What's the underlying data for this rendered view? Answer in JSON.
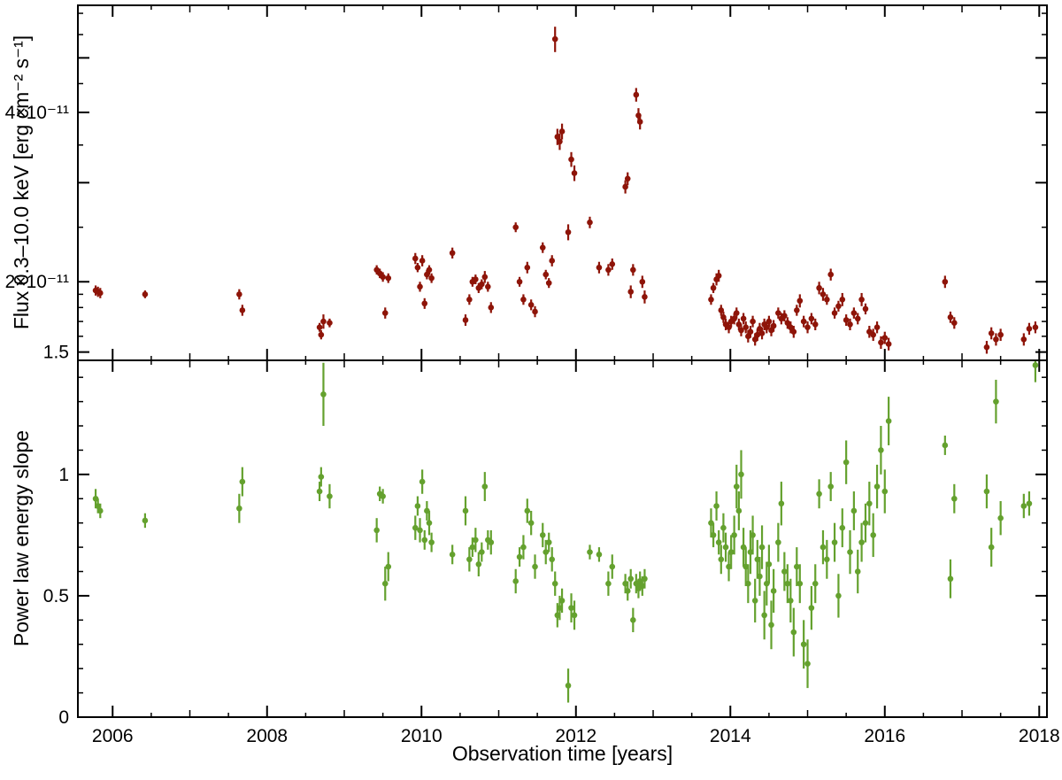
{
  "chart_data": {
    "type": "scatter",
    "description": "Two-panel X-ray monitoring light curve: 0.3-10.0 keV flux (top panel, dark red points with error bars, log scale) and power law energy slope (bottom panel, green points with error bars, linear scale) versus observation year.",
    "xlabel": "Observation time [years]",
    "xlim": [
      2005.55,
      2018.1
    ],
    "grid": false,
    "legend": null,
    "xticks": [
      {
        "v": 2006,
        "label": "2006"
      },
      {
        "v": 2008,
        "label": "2008"
      },
      {
        "v": 2010,
        "label": "2010"
      },
      {
        "v": 2012,
        "label": "2012"
      },
      {
        "v": 2014,
        "label": "2014"
      },
      {
        "v": 2016,
        "label": "2016"
      },
      {
        "v": 2018,
        "label": "2018"
      }
    ],
    "panels": [
      {
        "id": "flux",
        "ylabel": "Flux 0.3–10.0 keV [erg cm⁻² s⁻¹]",
        "yscale": "log",
        "unit": "1e-11 erg cm^-2 s^-1",
        "ylim": [
          1.45,
          6.2
        ],
        "marker_color": "#8e1408",
        "yticks": [
          {
            "v": 1.5,
            "label": "1.5",
            "major": true
          },
          {
            "v": 1.6
          },
          {
            "v": 1.7
          },
          {
            "v": 1.8
          },
          {
            "v": 1.9
          },
          {
            "v": 2,
            "label": "2×10⁻¹¹",
            "major": true
          },
          {
            "v": 2.5
          },
          {
            "v": 3,
            "major": true
          },
          {
            "v": 3.5
          },
          {
            "v": 4,
            "label": "4×10⁻¹¹",
            "major": true
          },
          {
            "v": 4.5
          },
          {
            "v": 5,
            "major": true
          },
          {
            "v": 5.5
          },
          {
            "v": 6
          }
        ]
      },
      {
        "id": "slope",
        "ylabel": "Power law energy slope",
        "yscale": "linear",
        "ylim": [
          0,
          1.47
        ],
        "marker_color": "#64a12e",
        "yticks": [
          {
            "v": 0,
            "label": "0",
            "major": true
          },
          {
            "v": 0.1
          },
          {
            "v": 0.2
          },
          {
            "v": 0.3
          },
          {
            "v": 0.4
          },
          {
            "v": 0.5,
            "label": "0.5",
            "major": true
          },
          {
            "v": 0.6
          },
          {
            "v": 0.7
          },
          {
            "v": 0.8
          },
          {
            "v": 0.9
          },
          {
            "v": 1,
            "label": "1",
            "major": true
          },
          {
            "v": 1.1
          },
          {
            "v": 1.2
          },
          {
            "v": 1.3
          },
          {
            "v": 1.4
          }
        ]
      }
    ],
    "observations": {
      "columns": [
        "time_year",
        "flux_1e-11",
        "flux_err_1e-11",
        "slope",
        "slope_err"
      ],
      "rows": [
        [
          2005.78,
          1.93,
          0.04,
          0.9,
          0.04
        ],
        [
          2005.81,
          1.92,
          0.04,
          0.87,
          0.03
        ],
        [
          2005.84,
          1.91,
          0.04,
          0.85,
          0.03
        ],
        [
          2006.42,
          1.9,
          0.03,
          0.81,
          0.03
        ],
        [
          2007.64,
          1.9,
          0.04,
          0.86,
          0.06
        ],
        [
          2007.68,
          1.78,
          0.04,
          0.97,
          0.06
        ],
        [
          2008.68,
          1.66,
          0.03,
          0.93,
          0.04
        ],
        [
          2008.7,
          1.61,
          0.03,
          0.99,
          0.04
        ],
        [
          2008.73,
          1.7,
          0.05,
          1.33,
          0.13
        ],
        [
          2008.81,
          1.69,
          0.03,
          0.91,
          0.05
        ],
        [
          2009.42,
          2.1,
          0.04,
          0.77,
          0.05
        ],
        [
          2009.46,
          2.07,
          0.04,
          0.92,
          0.03
        ],
        [
          2009.5,
          2.04,
          0.04,
          0.91,
          0.03
        ],
        [
          2009.53,
          1.76,
          0.04,
          0.55,
          0.07
        ],
        [
          2009.57,
          2.03,
          0.04,
          0.62,
          0.06
        ],
        [
          2009.92,
          2.2,
          0.05,
          0.78,
          0.05
        ],
        [
          2009.95,
          2.12,
          0.04,
          0.87,
          0.04
        ],
        [
          2009.98,
          1.96,
          0.04,
          0.77,
          0.05
        ],
        [
          2010.01,
          2.18,
          0.05,
          0.97,
          0.05
        ],
        [
          2010.04,
          1.83,
          0.04,
          0.73,
          0.04
        ],
        [
          2010.07,
          2.06,
          0.04,
          0.85,
          0.04
        ],
        [
          2010.1,
          2.1,
          0.04,
          0.8,
          0.05
        ],
        [
          2010.13,
          2.03,
          0.04,
          0.72,
          0.04
        ],
        [
          2010.4,
          2.25,
          0.05,
          0.67,
          0.04
        ],
        [
          2010.57,
          1.71,
          0.04,
          0.85,
          0.06
        ],
        [
          2010.62,
          1.86,
          0.04,
          0.65,
          0.05
        ],
        [
          2010.66,
          2.0,
          0.04,
          0.7,
          0.04
        ],
        [
          2010.7,
          2.02,
          0.04,
          0.73,
          0.05
        ],
        [
          2010.74,
          1.95,
          0.04,
          0.63,
          0.05
        ],
        [
          2010.78,
          1.98,
          0.04,
          0.68,
          0.04
        ],
        [
          2010.82,
          2.04,
          0.05,
          0.95,
          0.06
        ],
        [
          2010.86,
          1.96,
          0.04,
          0.73,
          0.04
        ],
        [
          2010.9,
          1.8,
          0.04,
          0.72,
          0.05
        ],
        [
          2011.22,
          2.5,
          0.05,
          0.56,
          0.05
        ],
        [
          2011.27,
          2.0,
          0.04,
          0.66,
          0.04
        ],
        [
          2011.32,
          1.86,
          0.04,
          0.7,
          0.05
        ],
        [
          2011.37,
          2.12,
          0.05,
          0.85,
          0.05
        ],
        [
          2011.42,
          1.82,
          0.04,
          0.8,
          0.05
        ],
        [
          2011.47,
          1.77,
          0.04,
          0.62,
          0.05
        ],
        [
          2011.57,
          2.3,
          0.05,
          0.75,
          0.05
        ],
        [
          2011.61,
          2.06,
          0.04,
          0.68,
          0.05
        ],
        [
          2011.65,
          1.99,
          0.04,
          0.72,
          0.04
        ],
        [
          2011.69,
          2.18,
          0.05,
          0.65,
          0.05
        ],
        [
          2011.73,
          5.4,
          0.28,
          0.55,
          0.05
        ],
        [
          2011.76,
          3.62,
          0.12,
          0.42,
          0.05
        ],
        [
          2011.79,
          3.55,
          0.12,
          0.45,
          0.05
        ],
        [
          2011.82,
          3.7,
          0.12,
          0.48,
          0.05
        ],
        [
          2011.9,
          2.45,
          0.08,
          0.13,
          0.07
        ],
        [
          2011.94,
          3.3,
          0.1,
          0.45,
          0.06
        ],
        [
          2011.98,
          3.12,
          0.1,
          0.42,
          0.06
        ],
        [
          2012.18,
          2.55,
          0.06,
          0.68,
          0.03
        ],
        [
          2012.3,
          2.12,
          0.05,
          0.67,
          0.03
        ],
        [
          2012.42,
          2.1,
          0.05,
          0.55,
          0.05
        ],
        [
          2012.47,
          2.15,
          0.05,
          0.62,
          0.05
        ],
        [
          2012.64,
          2.95,
          0.08,
          0.55,
          0.04
        ],
        [
          2012.67,
          3.05,
          0.08,
          0.52,
          0.04
        ],
        [
          2012.71,
          1.92,
          0.05,
          0.57,
          0.04
        ],
        [
          2012.74,
          2.1,
          0.05,
          0.4,
          0.05
        ],
        [
          2012.78,
          4.3,
          0.12,
          0.55,
          0.04
        ],
        [
          2012.81,
          3.95,
          0.12,
          0.53,
          0.04
        ],
        [
          2012.83,
          3.85,
          0.12,
          0.56,
          0.04
        ],
        [
          2012.86,
          2.0,
          0.05,
          0.54,
          0.04
        ],
        [
          2012.89,
          1.88,
          0.05,
          0.57,
          0.04
        ],
        [
          2013.75,
          1.86,
          0.04,
          0.8,
          0.06
        ],
        [
          2013.78,
          1.95,
          0.04,
          0.75,
          0.05
        ],
        [
          2013.82,
          2.02,
          0.05,
          0.87,
          0.06
        ],
        [
          2013.85,
          2.05,
          0.05,
          0.72,
          0.05
        ],
        [
          2013.88,
          1.78,
          0.04,
          0.65,
          0.06
        ],
        [
          2013.91,
          1.73,
          0.04,
          0.78,
          0.06
        ],
        [
          2013.94,
          1.68,
          0.04,
          0.7,
          0.06
        ],
        [
          2013.98,
          1.66,
          0.04,
          0.62,
          0.06
        ],
        [
          2014.01,
          1.7,
          0.04,
          0.68,
          0.07
        ],
        [
          2014.05,
          1.72,
          0.04,
          0.75,
          0.08
        ],
        [
          2014.08,
          1.76,
          0.04,
          0.95,
          0.09
        ],
        [
          2014.11,
          1.68,
          0.04,
          0.85,
          0.08
        ],
        [
          2014.14,
          1.64,
          0.04,
          1.0,
          0.1
        ],
        [
          2014.17,
          1.72,
          0.04,
          0.7,
          0.08
        ],
        [
          2014.2,
          1.66,
          0.04,
          0.62,
          0.08
        ],
        [
          2014.23,
          1.6,
          0.04,
          0.55,
          0.08
        ],
        [
          2014.26,
          1.63,
          0.04,
          0.68,
          0.09
        ],
        [
          2014.29,
          1.7,
          0.04,
          0.75,
          0.08
        ],
        [
          2014.32,
          1.58,
          0.04,
          0.48,
          0.09
        ],
        [
          2014.35,
          1.61,
          0.04,
          0.65,
          0.08
        ],
        [
          2014.38,
          1.65,
          0.04,
          0.58,
          0.08
        ],
        [
          2014.41,
          1.62,
          0.04,
          0.7,
          0.09
        ],
        [
          2014.44,
          1.68,
          0.04,
          0.42,
          0.1
        ],
        [
          2014.47,
          1.66,
          0.04,
          0.55,
          0.09
        ],
        [
          2014.5,
          1.7,
          0.04,
          0.63,
          0.08
        ],
        [
          2014.53,
          1.64,
          0.04,
          0.38,
          0.1
        ],
        [
          2014.56,
          1.67,
          0.04,
          0.52,
          0.09
        ],
        [
          2014.62,
          1.76,
          0.04,
          0.72,
          0.08
        ],
        [
          2014.66,
          1.72,
          0.04,
          0.88,
          0.09
        ],
        [
          2014.7,
          1.74,
          0.04,
          0.6,
          0.08
        ],
        [
          2014.74,
          1.69,
          0.04,
          0.55,
          0.08
        ],
        [
          2014.78,
          1.66,
          0.04,
          0.48,
          0.09
        ],
        [
          2014.82,
          1.63,
          0.04,
          0.35,
          0.1
        ],
        [
          2014.86,
          1.78,
          0.04,
          0.62,
          0.08
        ],
        [
          2014.9,
          1.85,
          0.05,
          0.55,
          0.08
        ],
        [
          2014.95,
          1.7,
          0.04,
          0.3,
          0.1
        ],
        [
          2015.0,
          1.66,
          0.04,
          0.22,
          0.1
        ],
        [
          2015.05,
          1.72,
          0.04,
          0.45,
          0.09
        ],
        [
          2015.1,
          1.68,
          0.04,
          0.55,
          0.08
        ],
        [
          2015.15,
          1.95,
          0.05,
          0.92,
          0.06
        ],
        [
          2015.2,
          1.9,
          0.05,
          0.7,
          0.07
        ],
        [
          2015.25,
          1.86,
          0.04,
          0.65,
          0.08
        ],
        [
          2015.3,
          2.06,
          0.05,
          0.95,
          0.06
        ],
        [
          2015.35,
          1.76,
          0.04,
          0.72,
          0.08
        ],
        [
          2015.4,
          1.81,
          0.04,
          0.5,
          0.09
        ],
        [
          2015.45,
          1.86,
          0.05,
          0.78,
          0.08
        ],
        [
          2015.5,
          1.71,
          0.04,
          1.05,
          0.09
        ],
        [
          2015.55,
          1.68,
          0.04,
          0.68,
          0.09
        ],
        [
          2015.6,
          1.76,
          0.04,
          0.85,
          0.08
        ],
        [
          2015.65,
          1.72,
          0.04,
          0.6,
          0.09
        ],
        [
          2015.7,
          1.86,
          0.05,
          0.72,
          0.08
        ],
        [
          2015.75,
          1.79,
          0.04,
          0.8,
          0.08
        ],
        [
          2015.8,
          1.63,
          0.04,
          0.88,
          0.09
        ],
        [
          2015.85,
          1.61,
          0.04,
          0.75,
          0.09
        ],
        [
          2015.9,
          1.66,
          0.04,
          0.95,
          0.09
        ],
        [
          2015.95,
          1.56,
          0.04,
          1.1,
          0.1
        ],
        [
          2016.0,
          1.59,
          0.04,
          0.93,
          0.09
        ],
        [
          2016.05,
          1.55,
          0.04,
          1.22,
          0.1
        ],
        [
          2016.78,
          2.0,
          0.05,
          1.12,
          0.04
        ],
        [
          2016.85,
          1.73,
          0.04,
          0.57,
          0.08
        ],
        [
          2016.9,
          1.69,
          0.04,
          0.9,
          0.06
        ],
        [
          2017.32,
          1.53,
          0.04,
          0.93,
          0.07
        ],
        [
          2017.38,
          1.62,
          0.04,
          0.7,
          0.08
        ],
        [
          2017.44,
          1.58,
          0.04,
          1.3,
          0.09
        ],
        [
          2017.5,
          1.61,
          0.04,
          0.82,
          0.07
        ],
        [
          2017.8,
          1.58,
          0.04,
          0.87,
          0.05
        ],
        [
          2017.87,
          1.65,
          0.04,
          0.88,
          0.05
        ],
        [
          2017.95,
          1.66,
          0.04,
          1.45,
          0.07
        ]
      ]
    }
  }
}
